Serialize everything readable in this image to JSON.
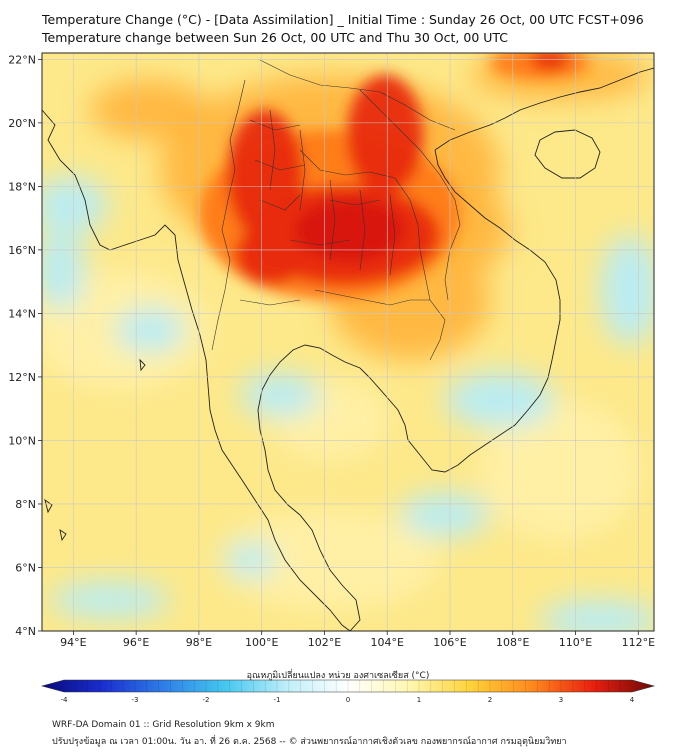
{
  "title_line1": "Temperature Change (°C) - [Data Assimilation] _ Initial Time : Sunday 26 Oct, 00 UTC FCST+096",
  "title_line2": "Temperature change between Sun 26 Oct, 00 UTC and Thu 30 Oct, 00 UTC",
  "axes": {
    "x_ticks": [
      {
        "value": 94,
        "label": "94°E"
      },
      {
        "value": 96,
        "label": "96°E"
      },
      {
        "value": 98,
        "label": "98°E"
      },
      {
        "value": 100,
        "label": "100°E"
      },
      {
        "value": 102,
        "label": "102°E"
      },
      {
        "value": 104,
        "label": "104°E"
      },
      {
        "value": 106,
        "label": "106°E"
      },
      {
        "value": 108,
        "label": "108°E"
      },
      {
        "value": 110,
        "label": "110°E"
      },
      {
        "value": 112,
        "label": "112°E"
      }
    ],
    "y_ticks": [
      {
        "value": 22,
        "label": "22°N"
      },
      {
        "value": 20,
        "label": "20°N"
      },
      {
        "value": 18,
        "label": "18°N"
      },
      {
        "value": 16,
        "label": "16°N"
      },
      {
        "value": 14,
        "label": "14°N"
      },
      {
        "value": 12,
        "label": "12°N"
      },
      {
        "value": 10,
        "label": "10°N"
      },
      {
        "value": 8,
        "label": "8°N"
      },
      {
        "value": 6,
        "label": "6°N"
      },
      {
        "value": 4,
        "label": "4°N"
      }
    ],
    "lon_range": [
      93,
      112.5
    ],
    "lat_range": [
      4,
      22.2
    ],
    "grid": true
  },
  "colorbar": {
    "label": "อุณหภูมิเปลี่ยนแปลง หน่วย องศาเซลเซียส (°C)",
    "range": [
      -4,
      4
    ],
    "ticks": [
      {
        "value": -4,
        "label": "-4"
      },
      {
        "value": -3,
        "label": "-3"
      },
      {
        "value": -2,
        "label": "-2"
      },
      {
        "value": -1,
        "label": "-1"
      },
      {
        "value": 0,
        "label": "0"
      },
      {
        "value": 1,
        "label": "1"
      },
      {
        "value": 2,
        "label": "2"
      },
      {
        "value": 3,
        "label": "3"
      },
      {
        "value": 4,
        "label": "4"
      }
    ],
    "colors": [
      "#08087a",
      "#1a2fd0",
      "#2f7fe8",
      "#45c8f0",
      "#bfeefa",
      "#ffffff",
      "#fff7b0",
      "#ffd23a",
      "#ff8a1e",
      "#e8200f",
      "#6e0808"
    ]
  },
  "field_colors": {
    "base": "#fde98a",
    "yellow": "#fff1a8",
    "orange": "#ffb43a",
    "dark_orange": "#ff7a18",
    "red": "#e82a10",
    "deep_red": "#d91808",
    "cyan": "#b6ecf8",
    "light_cyan": "#d8f5fb"
  },
  "footer_line1": "WRF-DA Domain 01 :: Grid Resolution 9km x 9km",
  "footer_line2": "ปรับปรุงข้อมูล ณ เวลา 01:00น. วัน อา. ที่ 26 ต.ค. 2568 -- © ส่วนพยากรณ์อากาศเชิงตัวเลข กองพยากรณ์อากาศ กรมอุตุนิยมวิทยา"
}
